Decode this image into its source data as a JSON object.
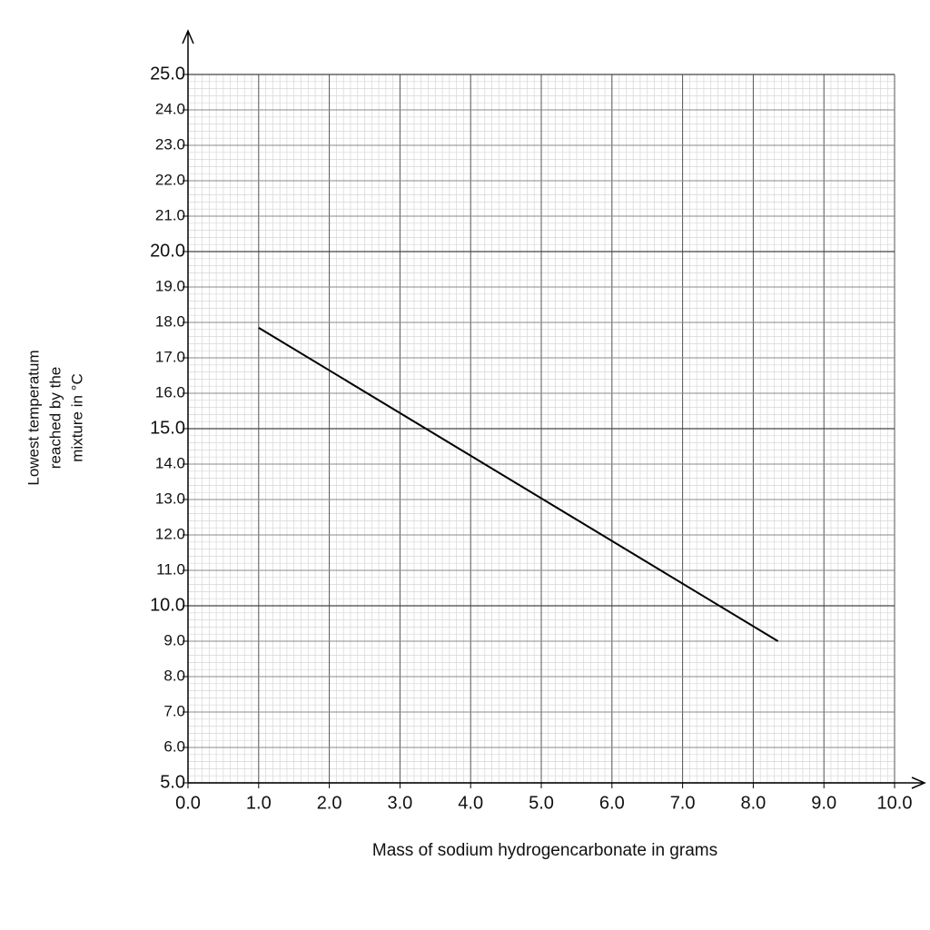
{
  "chart_data": {
    "type": "line",
    "xlabel": "Mass of sodium hydrogencarbonate in grams",
    "ylabel": [
      "Lowest temperatum",
      "reached by the",
      "mixture in °C"
    ],
    "x": [
      1.0,
      8.35
    ],
    "series": [
      {
        "color": "#000000",
        "values": [
          17.85,
          9.0
        ]
      }
    ],
    "xlim": [
      0,
      10
    ],
    "ylim": [
      5,
      25
    ],
    "xticks": [
      {
        "value": 0,
        "label": "0.0"
      },
      {
        "value": 1,
        "label": "1.0"
      },
      {
        "value": 2,
        "label": "2.0"
      },
      {
        "value": 3,
        "label": "3.0"
      },
      {
        "value": 4,
        "label": "4.0"
      },
      {
        "value": 5,
        "label": "5.0"
      },
      {
        "value": 6,
        "label": "6.0"
      },
      {
        "value": 7,
        "label": "7.0"
      },
      {
        "value": 8,
        "label": "8.0"
      },
      {
        "value": 9,
        "label": "9.0"
      },
      {
        "value": 10,
        "label": "10.0"
      }
    ],
    "yticks": [
      {
        "value": 5,
        "label": "5.0"
      },
      {
        "value": 6,
        "label": "6.0"
      },
      {
        "value": 7,
        "label": "7.0"
      },
      {
        "value": 8,
        "label": "8.0"
      },
      {
        "value": 9,
        "label": "9.0"
      },
      {
        "value": 10,
        "label": "10.0"
      },
      {
        "value": 11,
        "label": "11.0"
      },
      {
        "value": 12,
        "label": "12.0"
      },
      {
        "value": 13,
        "label": "13.0"
      },
      {
        "value": 14,
        "label": "14.0"
      },
      {
        "value": 15,
        "label": "15.0"
      },
      {
        "value": 16,
        "label": "16.0"
      },
      {
        "value": 17,
        "label": "17.0"
      },
      {
        "value": 18,
        "label": "18.0"
      },
      {
        "value": 19,
        "label": "19.0"
      },
      {
        "value": 20,
        "label": "20.0"
      },
      {
        "value": 21,
        "label": "21.0"
      },
      {
        "value": 22,
        "label": "22.0"
      },
      {
        "value": 23,
        "label": "23.0"
      },
      {
        "value": 24,
        "label": "24.0"
      },
      {
        "value": 25,
        "label": "25.0"
      }
    ],
    "grid": true
  }
}
